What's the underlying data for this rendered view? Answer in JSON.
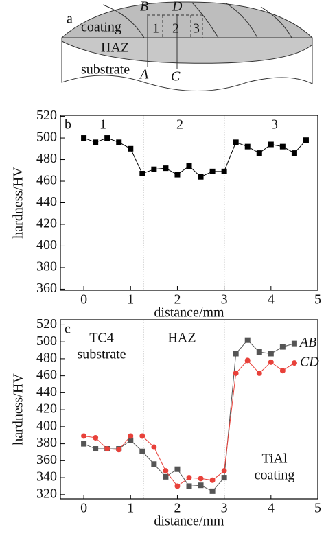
{
  "schematic": {
    "panel": "a",
    "point_labels": [
      "B",
      "D",
      "A",
      "C"
    ],
    "regions": [
      "coating",
      "HAZ",
      "substrate"
    ],
    "zones": [
      "1",
      "2",
      "3"
    ]
  },
  "chart_data": [
    {
      "type": "line",
      "panel": "b",
      "x_label": "distance/mm",
      "y_label": "hardness/HV",
      "x": [
        0,
        0.25,
        0.5,
        0.75,
        1,
        1.25,
        1.5,
        1.75,
        2,
        2.25,
        2.5,
        2.75,
        3,
        3.25,
        3.5,
        3.75,
        4,
        4.25,
        4.5,
        4.75
      ],
      "series": [
        {
          "color": "#000000",
          "marker": "square",
          "values": [
            500,
            496,
            500,
            496,
            490,
            467,
            471,
            472,
            466,
            474,
            464,
            469,
            469,
            496,
            492,
            486,
            494,
            492,
            486,
            498
          ]
        }
      ],
      "annotations": [
        [
          "1"
        ],
        [
          "2"
        ],
        [
          "3"
        ]
      ],
      "vlines": [
        1.27,
        3
      ],
      "xlim": [
        -0.5,
        5
      ],
      "xticks": [
        0,
        1,
        2,
        3,
        4,
        5
      ],
      "ylim": [
        359,
        521
      ],
      "yticks": [
        360,
        380,
        400,
        420,
        440,
        460,
        480,
        500,
        520
      ],
      "grid": false
    },
    {
      "type": "line",
      "panel": "c",
      "x_label": "distance/mm",
      "y_label": "hardness/HV",
      "x": [
        0,
        0.25,
        0.5,
        0.75,
        1,
        1.25,
        1.5,
        1.75,
        2,
        2.25,
        2.5,
        2.75,
        3,
        3.25,
        3.5,
        3.75,
        4,
        4.25,
        4.5
      ],
      "series": [
        {
          "name": "AB",
          "color": "#555555",
          "marker": "square",
          "values": [
            380,
            374,
            374,
            374,
            384,
            371,
            356,
            341,
            350,
            330,
            331,
            324,
            340,
            486,
            502,
            488,
            486,
            494,
            498
          ]
        },
        {
          "name": "CD",
          "color": "#e8413a",
          "marker": "circle",
          "values": [
            389,
            387,
            374,
            373,
            389,
            389,
            376,
            348,
            330,
            340,
            339,
            337,
            348,
            463,
            478,
            463,
            476,
            466,
            475
          ]
        }
      ],
      "annotations": [
        [
          "TC4",
          "substrate"
        ],
        [
          "HAZ"
        ],
        [
          "TiAl",
          "coating"
        ]
      ],
      "vlines": [
        1.27,
        3
      ],
      "xlim": [
        -0.5,
        5
      ],
      "xticks": [
        0,
        1,
        2,
        3,
        4,
        5
      ],
      "ylim": [
        315,
        526
      ],
      "yticks": [
        320,
        340,
        360,
        380,
        400,
        420,
        440,
        460,
        480,
        500,
        520
      ],
      "grid": false
    }
  ]
}
